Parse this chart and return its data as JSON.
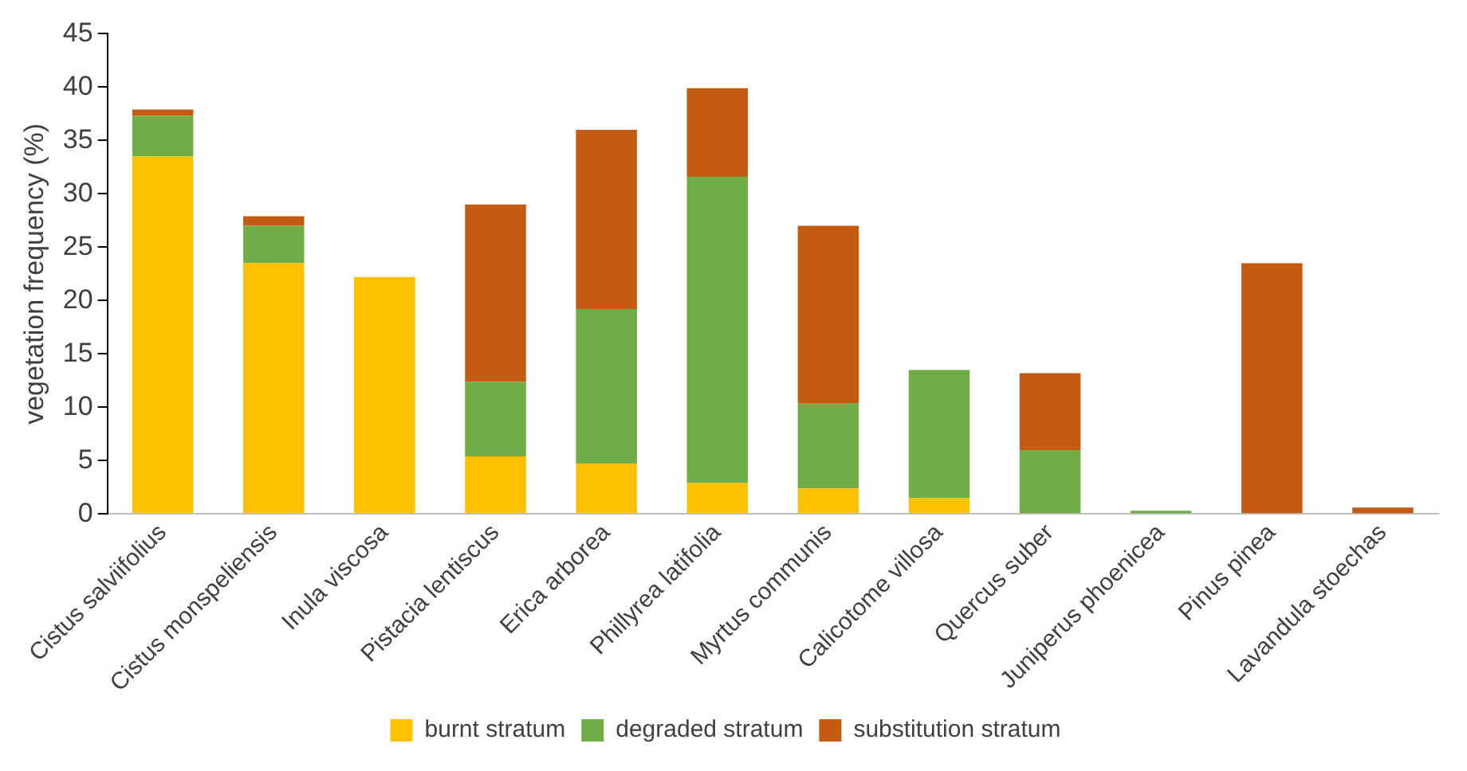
{
  "chart_data": {
    "type": "bar",
    "stacked": true,
    "ylabel": "vegetation frequency (%)",
    "categories": [
      "Cistus salviifolius",
      "Cistus monspeliensis",
      "Inula viscosa",
      "Pistacia lentiscus",
      "Erica arborea",
      "Phillyrea latifolia",
      "Myrtus communis",
      "Calicotome villosa",
      "Quercus suber",
      "Juniperus phoenicea",
      "Pinus pinea",
      "Lavandula stoechas"
    ],
    "series": [
      {
        "name": "burnt stratum",
        "color": "#ffc000",
        "values": [
          33.5,
          23.5,
          22.2,
          5.4,
          4.7,
          2.9,
          2.4,
          1.5,
          0,
          0,
          0,
          0
        ]
      },
      {
        "name": "degraded stratum",
        "color": "#70ad47",
        "values": [
          3.8,
          3.5,
          0,
          7.0,
          14.5,
          28.7,
          8.0,
          12.0,
          6.0,
          0.3,
          0,
          0
        ]
      },
      {
        "name": "substitution stratum",
        "color": "#c55a11",
        "values": [
          0.6,
          0.9,
          0,
          16.6,
          16.8,
          8.3,
          16.6,
          0,
          7.2,
          0,
          23.5,
          0.6
        ]
      }
    ],
    "ylim": [
      0,
      45
    ],
    "yticks": [
      0,
      5,
      10,
      15,
      20,
      25,
      30,
      35,
      40,
      45
    ],
    "grid": false,
    "legend": "bottom"
  }
}
